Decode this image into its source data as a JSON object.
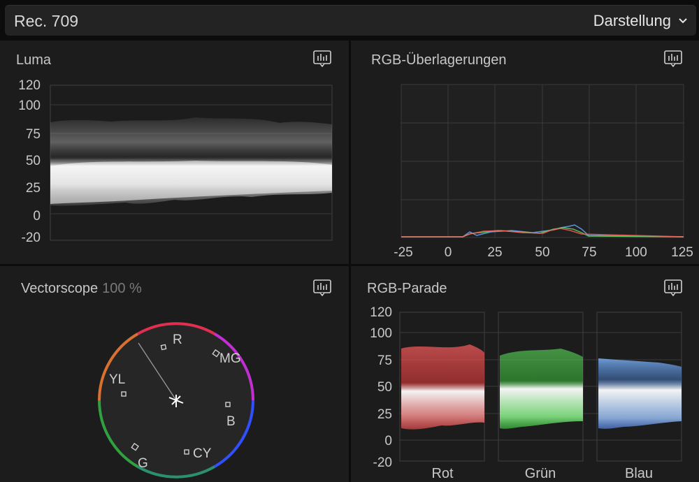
{
  "header": {
    "title": "Rec. 709",
    "menu_label": "Darstellung"
  },
  "luma": {
    "title": "Luma",
    "icon": "waveform-settings-icon",
    "axis_labels": [
      "120",
      "100",
      "75",
      "50",
      "25",
      "0",
      "-20"
    ]
  },
  "rgb_overlay": {
    "title": "RGB-Überlagerungen",
    "icon": "waveform-settings-icon",
    "axis_labels": [
      "-25",
      "0",
      "25",
      "50",
      "75",
      "100",
      "125"
    ]
  },
  "vectorscope": {
    "title": "Vectorscope",
    "zoom": "100 %",
    "icon": "waveform-settings-icon",
    "targets": [
      "R",
      "MG",
      "YL",
      "B",
      "G",
      "CY"
    ]
  },
  "parade": {
    "title": "RGB-Parade",
    "icon": "waveform-settings-icon",
    "axis_labels": [
      "120",
      "100",
      "75",
      "50",
      "25",
      "0",
      "-20"
    ],
    "channels": [
      "Rot",
      "Grün",
      "Blau"
    ]
  },
  "colors": {
    "background": "#1c1c1c",
    "red": "#ff5a5a",
    "green": "#5cd65c",
    "blue": "#6aa8ff"
  }
}
